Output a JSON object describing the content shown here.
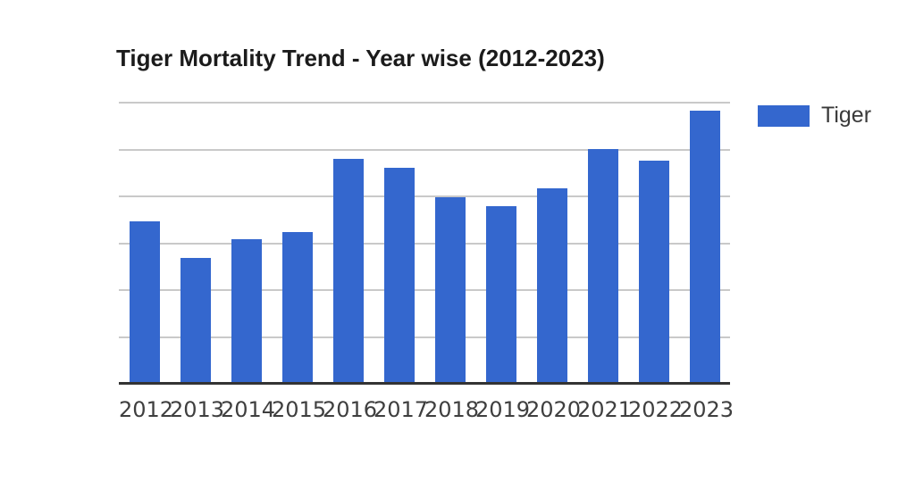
{
  "title": "Tiger Mortality Trend - Year wise (2012-2023)",
  "legend": {
    "label": "Tiger",
    "swatch_color": "#3467ce"
  },
  "colors": {
    "bar": "#3467ce",
    "gridline": "#c9c9c9",
    "baseline": "#333333",
    "title_text": "#1b1b1b",
    "tick_text": "#3f3f3f"
  },
  "chart_data": {
    "type": "bar",
    "title": "Tiger Mortality Trend - Year wise (2012-2023)",
    "categories": [
      "2012",
      "2013",
      "2014",
      "2015",
      "2016",
      "2017",
      "2018",
      "2019",
      "2020",
      "2021",
      "2022",
      "2023"
    ],
    "series": [
      {
        "name": "Tiger",
        "values": [
          88,
          68,
          78,
          82,
          122,
          117,
          101,
          96,
          106,
          127,
          121,
          148
        ]
      }
    ],
    "xlabel": "",
    "ylabel": "",
    "ylim": [
      0,
      150
    ],
    "gridline_step": 25,
    "grid": true,
    "y_axis_tick_labels_visible": false,
    "legend_position": "right"
  }
}
